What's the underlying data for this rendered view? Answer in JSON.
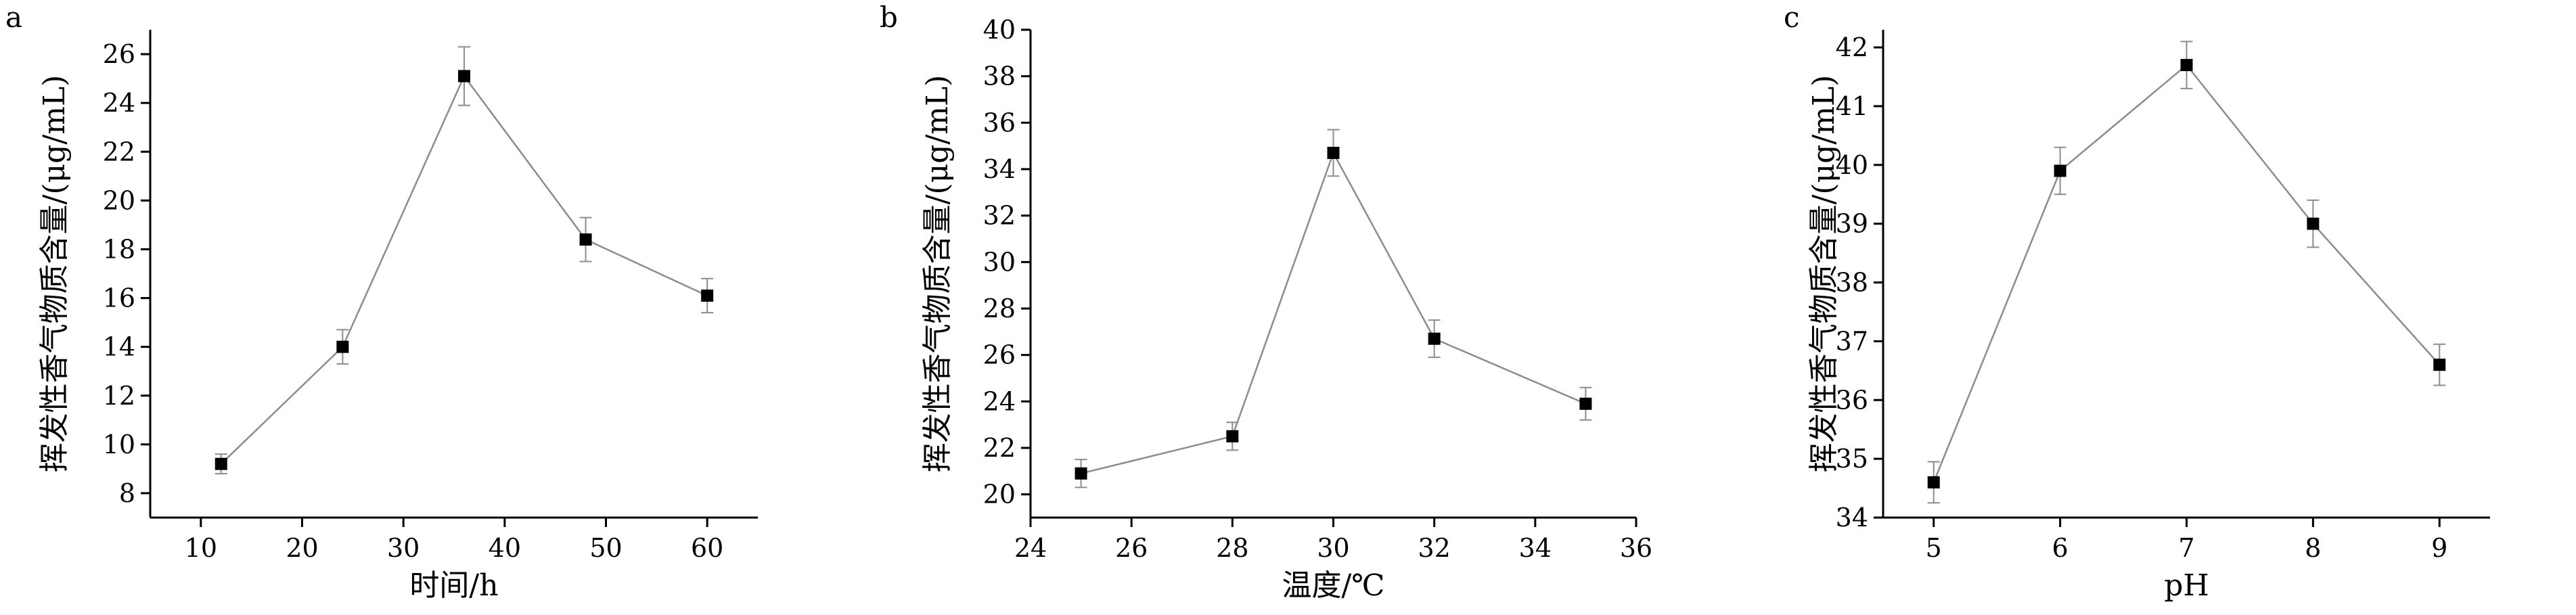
{
  "chart_data": [
    {
      "type": "line",
      "panel": "a",
      "xlabel": "时间/h",
      "ylabel": "挥发性香气物质含量/(μg/mL)",
      "xlim": [
        5,
        65
      ],
      "ylim": [
        7,
        27
      ],
      "xticks": [
        10,
        20,
        30,
        40,
        50,
        60
      ],
      "yticks": [
        8,
        10,
        12,
        14,
        16,
        18,
        20,
        22,
        24,
        26
      ],
      "series": [
        {
          "x": [
            12,
            24,
            36,
            48,
            60
          ],
          "y": [
            9.2,
            14.0,
            25.1,
            18.4,
            16.1
          ],
          "error": [
            0.4,
            0.7,
            1.2,
            0.9,
            0.7
          ]
        }
      ]
    },
    {
      "type": "line",
      "panel": "b",
      "xlabel": "温度/℃",
      "ylabel": "挥发性香气物质含量/(μg/mL)",
      "xlim": [
        24,
        36
      ],
      "ylim": [
        19,
        40
      ],
      "xticks": [
        24,
        26,
        28,
        30,
        32,
        34,
        36
      ],
      "yticks": [
        20,
        22,
        24,
        26,
        28,
        30,
        32,
        34,
        36,
        38,
        40
      ],
      "series": [
        {
          "x": [
            25,
            28,
            30,
            32,
            35
          ],
          "y": [
            20.9,
            22.5,
            34.7,
            26.7,
            23.9
          ],
          "error": [
            0.6,
            0.6,
            1.0,
            0.8,
            0.7
          ]
        }
      ]
    },
    {
      "type": "line",
      "panel": "c",
      "xlabel": "pH",
      "ylabel": "挥发性香气物质含量/(μg/mL)",
      "xlim": [
        4.6,
        9.4
      ],
      "ylim": [
        34,
        42.3
      ],
      "xticks": [
        5,
        6,
        7,
        8,
        9
      ],
      "yticks": [
        34,
        35,
        36,
        37,
        38,
        39,
        40,
        41,
        42
      ],
      "series": [
        {
          "x": [
            5,
            6,
            7,
            8,
            9
          ],
          "y": [
            34.6,
            39.9,
            41.7,
            39.0,
            36.6
          ],
          "error": [
            0.35,
            0.4,
            0.4,
            0.4,
            0.35
          ]
        }
      ]
    }
  ]
}
